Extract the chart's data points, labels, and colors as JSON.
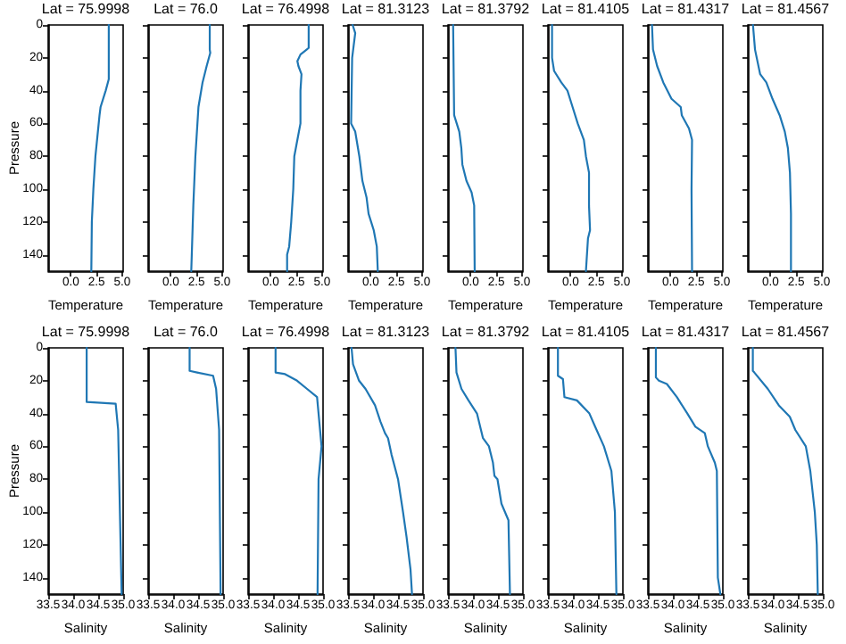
{
  "chart_data": [
    {
      "type": "line",
      "title": "Lat = 75.9998",
      "xlabel": "Temperature",
      "ylabel": "Pressure",
      "xlim": [
        -2.2,
        5.1
      ],
      "xticks": [
        {
          "value": 0,
          "label": "0.0"
        },
        2.5,
        {
          "value": 5,
          "label": "5.0"
        }
      ],
      "ylim": [
        150,
        0
      ],
      "yticks": [
        0,
        20,
        40,
        60,
        80,
        100,
        120,
        140
      ],
      "series": [
        {
          "color": "#1f77b4",
          "x": [
            3.7,
            3.7,
            3.4,
            2.9,
            2.8,
            2.4,
            2.2,
            2.05,
            2.0
          ],
          "values": [
            0,
            33,
            40,
            50,
            55,
            80,
            100,
            120,
            150
          ]
        }
      ]
    },
    {
      "type": "line",
      "title": "Lat = 76.0",
      "xlabel": "Temperature",
      "xlim": [
        -2.2,
        5.1
      ],
      "xticks": [
        {
          "value": 0,
          "label": "0.0"
        },
        2.5,
        {
          "value": 5,
          "label": "5.0"
        }
      ],
      "ylim": [
        150,
        0
      ],
      "yticks": [
        0,
        20,
        40,
        60,
        80,
        100,
        120,
        140
      ],
      "tick_labels": "x",
      "series": [
        {
          "color": "#1f77b4",
          "x": [
            3.8,
            3.8,
            3.85,
            3.5,
            3.1,
            2.7,
            2.4,
            2.2,
            2.0
          ],
          "values": [
            0,
            15,
            17,
            25,
            35,
            50,
            80,
            110,
            150
          ]
        }
      ]
    },
    {
      "type": "line",
      "title": "Lat = 76.4998",
      "xlabel": "Temperature",
      "xlim": [
        -2.2,
        5.1
      ],
      "xticks": [
        {
          "value": 0,
          "label": "0.0"
        },
        2.5,
        {
          "value": 5,
          "label": "5.0"
        }
      ],
      "ylim": [
        150,
        0
      ],
      "yticks": [
        0,
        20,
        40,
        60,
        80,
        100,
        120,
        140
      ],
      "tick_labels": "x",
      "series": [
        {
          "color": "#1f77b4",
          "x": [
            3.7,
            3.7,
            3.5,
            2.9,
            2.6,
            2.7,
            3.0,
            2.9,
            2.9,
            2.6,
            2.3,
            2.2,
            2.0,
            1.8,
            1.6,
            1.6
          ],
          "values": [
            0,
            14,
            15,
            18,
            22,
            25,
            30,
            40,
            60,
            70,
            80,
            100,
            120,
            135,
            140,
            150
          ]
        }
      ]
    },
    {
      "type": "line",
      "title": "Lat = 81.3123",
      "xlabel": "Temperature",
      "xlim": [
        -2.2,
        5.1
      ],
      "xticks": [
        {
          "value": 0,
          "label": "0.0"
        },
        2.5,
        {
          "value": 5,
          "label": "5.0"
        }
      ],
      "ylim": [
        150,
        0
      ],
      "yticks": [
        0,
        20,
        40,
        60,
        80,
        100,
        120,
        140
      ],
      "tick_labels": "x",
      "series": [
        {
          "color": "#1f77b4",
          "x": [
            -1.75,
            -1.5,
            -1.8,
            -1.9,
            -1.5,
            -1.1,
            -0.8,
            -0.4,
            -0.2,
            0.3,
            0.6,
            0.7
          ],
          "values": [
            0,
            5,
            20,
            60,
            65,
            80,
            95,
            105,
            115,
            125,
            135,
            150
          ]
        }
      ]
    },
    {
      "type": "line",
      "title": "Lat = 81.3792",
      "xlabel": "Temperature",
      "xlim": [
        -2.2,
        5.1
      ],
      "xticks": [
        {
          "value": 0,
          "label": "0.0"
        },
        2.5,
        {
          "value": 5,
          "label": "5.0"
        }
      ],
      "ylim": [
        150,
        0
      ],
      "yticks": [
        0,
        20,
        40,
        60,
        80,
        100,
        120,
        140
      ],
      "tick_labels": "x",
      "series": [
        {
          "color": "#1f77b4",
          "x": [
            -1.7,
            -1.6,
            -1.1,
            -0.9,
            -0.8,
            -0.4,
            0.1,
            0.35,
            0.4
          ],
          "values": [
            0,
            55,
            65,
            75,
            85,
            95,
            102,
            110,
            150
          ]
        }
      ]
    },
    {
      "type": "line",
      "title": "Lat = 81.4105",
      "xlabel": "Temperature",
      "xlim": [
        -2.2,
        5.1
      ],
      "xticks": [
        {
          "value": 0,
          "label": "0.0"
        },
        2.5,
        {
          "value": 5,
          "label": "5.0"
        }
      ],
      "ylim": [
        150,
        0
      ],
      "yticks": [
        0,
        20,
        40,
        60,
        80,
        100,
        120,
        140
      ],
      "tick_labels": "x",
      "series": [
        {
          "color": "#1f77b4",
          "x": [
            -1.8,
            -1.8,
            -1.6,
            -0.9,
            -0.3,
            0.2,
            0.7,
            1.3,
            1.5,
            1.8,
            1.8,
            1.9,
            1.7,
            1.5
          ],
          "values": [
            0,
            20,
            28,
            35,
            40,
            50,
            60,
            70,
            80,
            90,
            110,
            125,
            130,
            150
          ]
        }
      ]
    },
    {
      "type": "line",
      "title": "Lat = 81.4317",
      "xlabel": "Temperature",
      "xlim": [
        -2.2,
        5.1
      ],
      "xticks": [
        {
          "value": 0,
          "label": "0.0"
        },
        2.5,
        {
          "value": 5,
          "label": "5.0"
        }
      ],
      "ylim": [
        150,
        0
      ],
      "yticks": [
        0,
        20,
        40,
        60,
        80,
        100,
        120,
        140
      ],
      "tick_labels": "x",
      "series": [
        {
          "color": "#1f77b4",
          "x": [
            -1.8,
            -1.7,
            -1.3,
            -0.7,
            0.1,
            1.0,
            1.1,
            1.8,
            2.1,
            2.05,
            2.1
          ],
          "values": [
            0,
            15,
            25,
            35,
            45,
            50,
            55,
            63,
            70,
            100,
            150
          ]
        }
      ]
    },
    {
      "type": "line",
      "title": "Lat = 81.4567",
      "xlabel": "Temperature",
      "xlim": [
        -2.2,
        5.1
      ],
      "xticks": [
        {
          "value": 0,
          "label": "0.0"
        },
        2.5,
        {
          "value": 5,
          "label": "5.0"
        }
      ],
      "ylim": [
        150,
        0
      ],
      "yticks": [
        0,
        20,
        40,
        60,
        80,
        100,
        120,
        140
      ],
      "tick_labels": "x",
      "series": [
        {
          "color": "#1f77b4",
          "x": [
            -1.7,
            -1.5,
            -1.0,
            -0.4,
            0.2,
            0.9,
            1.4,
            1.7,
            1.9,
            2.0,
            2.0
          ],
          "values": [
            0,
            15,
            30,
            35,
            45,
            55,
            65,
            75,
            90,
            115,
            150
          ]
        }
      ]
    },
    {
      "type": "line",
      "title": "Lat = 75.9998",
      "xlabel": "Salinity",
      "ylabel": "Pressure",
      "xlim": [
        33.5,
        35.0
      ],
      "xticks": [
        33.5,
        {
          "value": 34,
          "label": "34.0"
        },
        34.5,
        {
          "value": 35,
          "label": "35.0"
        }
      ],
      "ylim": [
        150,
        0
      ],
      "yticks": [
        0,
        20,
        40,
        60,
        80,
        100,
        120,
        140
      ],
      "series": [
        {
          "color": "#1f77b4",
          "x": [
            34.27,
            34.27,
            34.85,
            34.9,
            34.97
          ],
          "values": [
            0,
            33,
            34,
            50,
            150
          ]
        }
      ]
    },
    {
      "type": "line",
      "title": "Lat = 76.0",
      "xlabel": "Salinity",
      "xlim": [
        33.5,
        35.0
      ],
      "xticks": [
        33.5,
        {
          "value": 34,
          "label": "34.0"
        },
        34.5,
        {
          "value": 35,
          "label": "35.0"
        }
      ],
      "ylim": [
        150,
        0
      ],
      "yticks": [
        0,
        20,
        40,
        60,
        80,
        100,
        120,
        140
      ],
      "tick_labels": "x",
      "series": [
        {
          "color": "#1f77b4",
          "x": [
            34.33,
            34.33,
            34.48,
            34.8,
            34.86,
            34.92,
            34.95
          ],
          "values": [
            0,
            14,
            15,
            17,
            25,
            50,
            150
          ]
        }
      ]
    },
    {
      "type": "line",
      "title": "Lat = 76.4998",
      "xlabel": "Salinity",
      "xlim": [
        33.5,
        35.0
      ],
      "xticks": [
        33.5,
        {
          "value": 34,
          "label": "34.0"
        },
        34.5,
        {
          "value": 35,
          "label": "35.0"
        }
      ],
      "ylim": [
        150,
        0
      ],
      "yticks": [
        0,
        20,
        40,
        60,
        80,
        100,
        120,
        140
      ],
      "tick_labels": "x",
      "series": [
        {
          "color": "#1f77b4",
          "x": [
            34.05,
            34.05,
            34.24,
            34.48,
            34.68,
            34.88,
            34.97,
            34.91,
            34.89
          ],
          "values": [
            0,
            15,
            16,
            20,
            25,
            30,
            60,
            80,
            150
          ]
        }
      ]
    },
    {
      "type": "line",
      "title": "Lat = 81.3123",
      "xlabel": "Salinity",
      "xlim": [
        33.5,
        35.0
      ],
      "xticks": [
        33.5,
        {
          "value": 34,
          "label": "34.0"
        },
        34.5,
        {
          "value": 35,
          "label": "35.0"
        }
      ],
      "ylim": [
        150,
        0
      ],
      "yticks": [
        0,
        20,
        40,
        60,
        80,
        100,
        120,
        140
      ],
      "tick_labels": "x",
      "series": [
        {
          "color": "#1f77b4",
          "x": [
            33.57,
            33.6,
            33.72,
            33.85,
            34.04,
            34.15,
            34.24,
            34.3,
            34.37,
            34.5,
            34.6,
            34.67,
            34.75,
            34.78
          ],
          "values": [
            0,
            10,
            20,
            25,
            35,
            45,
            52,
            55,
            65,
            80,
            100,
            115,
            135,
            150
          ]
        }
      ]
    },
    {
      "type": "line",
      "title": "Lat = 81.3792",
      "xlabel": "Salinity",
      "xlim": [
        33.5,
        35.0
      ],
      "xticks": [
        33.5,
        {
          "value": 34,
          "label": "34.0"
        },
        34.5,
        {
          "value": 35,
          "label": "35.0"
        }
      ],
      "ylim": [
        150,
        0
      ],
      "yticks": [
        0,
        20,
        40,
        60,
        80,
        100,
        120,
        140
      ],
      "tick_labels": "x",
      "series": [
        {
          "color": "#1f77b4",
          "x": [
            33.65,
            33.67,
            33.77,
            33.91,
            34.08,
            34.16,
            34.2,
            34.32,
            34.4,
            34.43,
            34.49,
            34.57,
            34.71,
            34.74
          ],
          "values": [
            0,
            15,
            25,
            32,
            40,
            50,
            55,
            60,
            70,
            78,
            80,
            95,
            105,
            150
          ]
        }
      ]
    },
    {
      "type": "line",
      "title": "Lat = 81.4105",
      "xlabel": "Salinity",
      "xlim": [
        33.5,
        35.0
      ],
      "xticks": [
        33.5,
        {
          "value": 34,
          "label": "34.0"
        },
        34.5,
        {
          "value": 35,
          "label": "35.0"
        }
      ],
      "ylim": [
        150,
        0
      ],
      "yticks": [
        0,
        20,
        40,
        60,
        80,
        100,
        120,
        140
      ],
      "tick_labels": "x",
      "series": [
        {
          "color": "#1f77b4",
          "x": [
            33.7,
            33.7,
            33.8,
            33.83,
            34.08,
            34.33,
            34.43,
            34.62,
            34.77,
            34.84,
            34.87
          ],
          "values": [
            0,
            17,
            19,
            30,
            32,
            40,
            47,
            60,
            75,
            100,
            150
          ]
        }
      ]
    },
    {
      "type": "line",
      "title": "Lat = 81.4317",
      "xlabel": "Salinity",
      "xlim": [
        33.5,
        35.0
      ],
      "xticks": [
        33.5,
        {
          "value": 34,
          "label": "34.0"
        },
        34.5,
        {
          "value": 35,
          "label": "35.0"
        }
      ],
      "ylim": [
        150,
        0
      ],
      "yticks": [
        0,
        20,
        40,
        60,
        80,
        100,
        120,
        140
      ],
      "tick_labels": "x",
      "series": [
        {
          "color": "#1f77b4",
          "x": [
            33.66,
            33.66,
            33.72,
            33.88,
            34.08,
            34.29,
            34.45,
            34.64,
            34.7,
            34.84,
            34.88,
            34.9,
            34.95
          ],
          "values": [
            0,
            18,
            20,
            22,
            30,
            40,
            48,
            52,
            60,
            70,
            75,
            140,
            150
          ]
        }
      ]
    },
    {
      "type": "line",
      "title": "Lat = 81.4567",
      "xlabel": "Salinity",
      "xlim": [
        33.5,
        35.0
      ],
      "xticks": [
        33.5,
        {
          "value": 34,
          "label": "34.0"
        },
        34.5,
        {
          "value": 35,
          "label": "35.0"
        }
      ],
      "ylim": [
        150,
        0
      ],
      "yticks": [
        0,
        20,
        40,
        60,
        80,
        100,
        120,
        140
      ],
      "tick_labels": "x",
      "series": [
        {
          "color": "#1f77b4",
          "x": [
            33.6,
            33.6,
            33.63,
            33.9,
            34.12,
            34.34,
            34.45,
            34.66,
            34.75,
            34.84,
            34.88,
            34.9
          ],
          "values": [
            0,
            14,
            15,
            25,
            35,
            42,
            50,
            60,
            75,
            100,
            120,
            150
          ]
        }
      ]
    }
  ]
}
